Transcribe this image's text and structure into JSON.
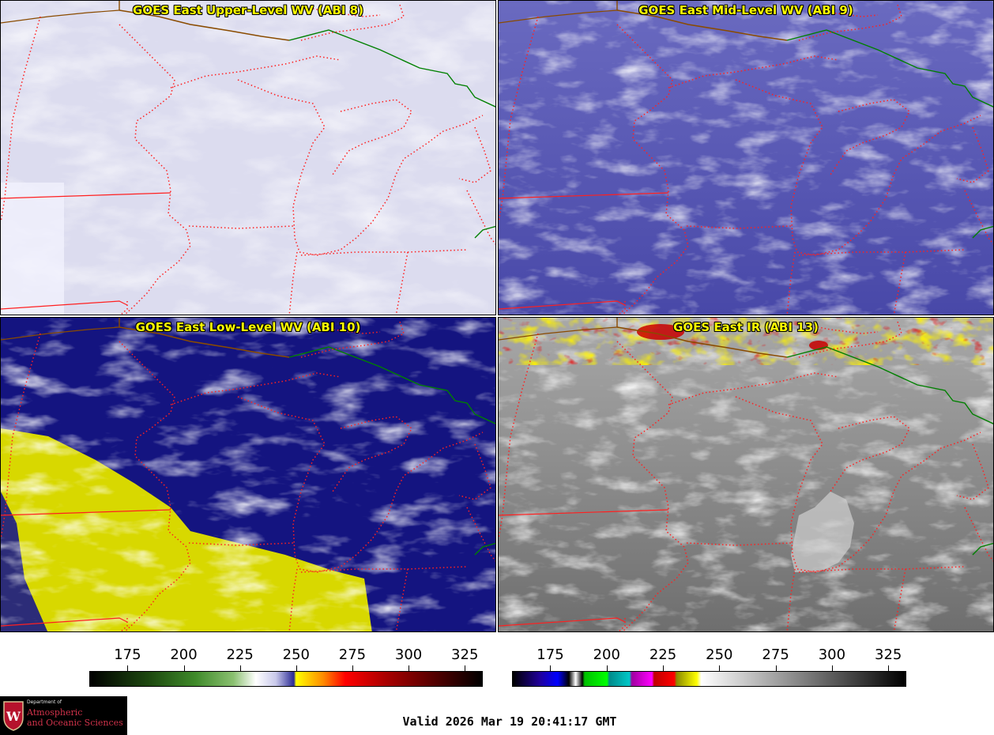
{
  "panels": [
    {
      "id": "upper",
      "title": "GOES East Upper-Level WV (ABI 8)"
    },
    {
      "id": "mid",
      "title": "GOES East Mid-Level WV (ABI 9)"
    },
    {
      "id": "low",
      "title": "GOES East Low-Level WV (ABI 10)"
    },
    {
      "id": "ir",
      "title": "GOES East IR (ABI 13)"
    }
  ],
  "colorbars": {
    "wv": {
      "ticks": [
        "175",
        "200",
        "225",
        "250",
        "275",
        "300",
        "325"
      ],
      "range": [
        158,
        333
      ],
      "stops": [
        {
          "value": 158,
          "color": "#000000"
        },
        {
          "value": 185,
          "color": "#1e4a10"
        },
        {
          "value": 205,
          "color": "#3f8a2a"
        },
        {
          "value": 222,
          "color": "#8ac070"
        },
        {
          "value": 232,
          "color": "#ffffff"
        },
        {
          "value": 241,
          "color": "#c8c8ea"
        },
        {
          "value": 249,
          "color": "#2a2a95"
        },
        {
          "value": 250,
          "color": "#ffff00"
        },
        {
          "value": 262,
          "color": "#ff8c00"
        },
        {
          "value": 272,
          "color": "#ff0000"
        },
        {
          "value": 290,
          "color": "#aa0000"
        },
        {
          "value": 310,
          "color": "#5a0000"
        },
        {
          "value": 333,
          "color": "#000000"
        }
      ]
    },
    "ir": {
      "ticks": [
        "175",
        "200",
        "225",
        "250",
        "275",
        "300",
        "325"
      ],
      "range": [
        158,
        333
      ],
      "stops": [
        {
          "value": 158,
          "color": "#000000"
        },
        {
          "value": 170,
          "color": "#20009a"
        },
        {
          "value": 178,
          "color": "#0000ff"
        },
        {
          "value": 183,
          "color": "#000000"
        },
        {
          "value": 186,
          "color": "#ffffff"
        },
        {
          "value": 189,
          "color": "#000000"
        },
        {
          "value": 190,
          "color": "#00c000"
        },
        {
          "value": 200,
          "color": "#00ff00"
        },
        {
          "value": 201,
          "color": "#008a8a"
        },
        {
          "value": 210,
          "color": "#00c8c8"
        },
        {
          "value": 211,
          "color": "#a000a0"
        },
        {
          "value": 220,
          "color": "#ff00ff"
        },
        {
          "value": 221,
          "color": "#c00000"
        },
        {
          "value": 230,
          "color": "#ff0000"
        },
        {
          "value": 231,
          "color": "#8a8a00"
        },
        {
          "value": 240,
          "color": "#ffff00"
        },
        {
          "value": 242,
          "color": "#ffffff"
        },
        {
          "value": 333,
          "color": "#000000"
        }
      ]
    }
  },
  "valid_time": "Valid 2026 Mar 19 20:41:17 GMT",
  "logo": {
    "dept": "Department of",
    "line1": "Atmospheric",
    "line2": "and Oceanic Sciences"
  },
  "colors": {
    "state_border": "#ff2020",
    "international_border": "#008000",
    "coast": "#8a4b00"
  }
}
